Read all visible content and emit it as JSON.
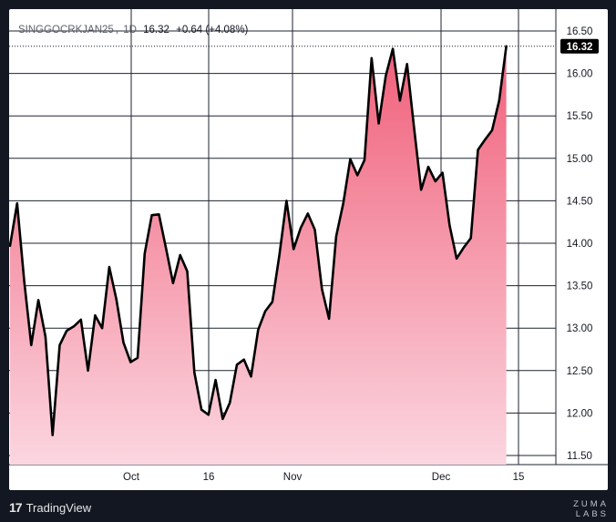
{
  "legend": {
    "symbol": "SINGGOCRKJAN25",
    "interval": "1D",
    "last": "16.32",
    "change": "+0.64 (+4.08%)"
  },
  "price_label": "16.32",
  "footer": {
    "tv_mark": "17",
    "tv_text": "TradingView",
    "zuma_line1": "ZUMA",
    "zuma_line2": "LABS"
  },
  "colors": {
    "line": "#000000",
    "area_top": "#f0607a",
    "area_bottom": "#fbd6e0",
    "grid": "#1f2330",
    "label_bg": "#000000",
    "background": "#131722"
  },
  "chart_data": {
    "type": "area",
    "series": [
      {
        "values": [
          13.97,
          14.47,
          13.55,
          12.8,
          13.33,
          12.9,
          11.74,
          12.8,
          12.97,
          13.02,
          13.1,
          12.5,
          13.15,
          13.0,
          13.72,
          13.34,
          12.83,
          12.6,
          12.65,
          13.88,
          14.33,
          14.34,
          13.94,
          13.53,
          13.86,
          13.67,
          12.48,
          12.04,
          11.98,
          12.39,
          11.93,
          12.12,
          12.57,
          12.63,
          12.43,
          12.98,
          13.2,
          13.31,
          13.86,
          14.5,
          13.93,
          14.18,
          14.35,
          14.16,
          13.46,
          13.11,
          14.08,
          14.47,
          14.99,
          14.8,
          14.98,
          16.18,
          15.41,
          15.97,
          16.29,
          15.68,
          16.11,
          15.35,
          14.63,
          14.9,
          14.73,
          14.83,
          14.21,
          13.82,
          13.95,
          14.06,
          15.1,
          15.22,
          15.33,
          15.68,
          16.32
        ]
      }
    ],
    "x_tick_labels": [
      "Oct",
      "16",
      "Nov",
      "Dec",
      "15"
    ],
    "y_tick_labels": [
      "11.50",
      "12.00",
      "12.50",
      "13.00",
      "13.50",
      "14.00",
      "14.50",
      "15.00",
      "15.50",
      "16.00",
      "16.50"
    ],
    "ylim": [
      11.5,
      16.5
    ],
    "last_value": 16.32,
    "grid": true,
    "legend_position": "top-left"
  }
}
